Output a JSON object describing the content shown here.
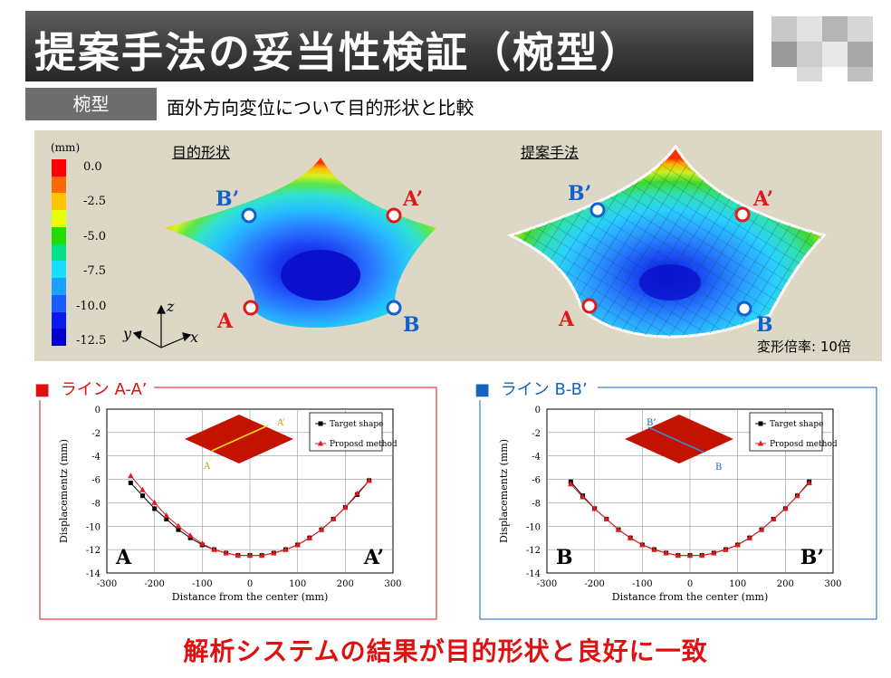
{
  "header": {
    "title": "提案手法の妥当性検証（椀型）"
  },
  "section": {
    "badge": "椀型",
    "subtitle": "面外方向変位について目的形状と比較"
  },
  "legend": {
    "unit": "(mm)",
    "ticks": [
      "0.0",
      "-2.5",
      "-5.0",
      "-7.5",
      "-10.0",
      "-12.5"
    ],
    "colors": [
      "#ff0000",
      "#ff6a00",
      "#ffc400",
      "#e8ff00",
      "#22dd00",
      "#00e08a",
      "#18e0ff",
      "#1aa0ff",
      "#1a5cff",
      "#0a1aee",
      "#0000cc"
    ]
  },
  "axes_triad": {
    "z": "z",
    "y": "y",
    "x": "x"
  },
  "panels": {
    "target_label": "目的形状",
    "proposed_label": "提案手法",
    "scale_note": "変形倍率: 10倍",
    "point_labels": {
      "b_prime": "B’",
      "a_prime": "A’",
      "a": "A",
      "b": "B"
    }
  },
  "colors": {
    "red_point": "#e31919",
    "blue_point": "#1060d0",
    "accent_red": "#e01010",
    "accent_blue": "#1565c0"
  },
  "chart_data": [
    {
      "type": "line",
      "title": "ライン A-A’",
      "title_marker": "■",
      "xlabel": "Distance from the center (mm)",
      "ylabel": "Displacementz (mm)",
      "xlim": [
        -300,
        300
      ],
      "ylim": [
        -14,
        0
      ],
      "xticks": [
        "-300",
        "-200",
        "-100",
        "0",
        "100",
        "200",
        "300"
      ],
      "yticks": [
        "0",
        "-2",
        "-4",
        "-6",
        "-8",
        "-10",
        "-12",
        "-14"
      ],
      "x": [
        -250,
        -225,
        -200,
        -175,
        -150,
        -125,
        -100,
        -75,
        -50,
        -25,
        0,
        25,
        50,
        75,
        100,
        125,
        150,
        175,
        200,
        225,
        250
      ],
      "series": [
        {
          "name": "Target shape",
          "marker": "square",
          "color": "#000000",
          "values": [
            -6.3,
            -7.4,
            -8.5,
            -9.4,
            -10.3,
            -11.0,
            -11.6,
            -12.0,
            -12.3,
            -12.5,
            -12.5,
            -12.5,
            -12.3,
            -12.0,
            -11.6,
            -11.0,
            -10.3,
            -9.4,
            -8.4,
            -7.3,
            -6.1
          ]
        },
        {
          "name": "Proposd method",
          "marker": "triangle",
          "color": "#e31919",
          "values": [
            -5.7,
            -6.9,
            -8.0,
            -9.1,
            -10.0,
            -10.8,
            -11.5,
            -12.0,
            -12.3,
            -12.5,
            -12.5,
            -12.5,
            -12.3,
            -12.0,
            -11.6,
            -11.0,
            -10.3,
            -9.4,
            -8.4,
            -7.2,
            -6.1
          ]
        }
      ],
      "corner_labels": [
        "A",
        "A’"
      ],
      "inset_labels": [
        "A’",
        "A"
      ],
      "legend_position": "top-right",
      "grid": true
    },
    {
      "type": "line",
      "title": "ライン B-B’",
      "title_marker": "■",
      "xlabel": "Distance from the center (mm)",
      "ylabel": "Displacementz (mm)",
      "xlim": [
        -300,
        300
      ],
      "ylim": [
        -14,
        0
      ],
      "xticks": [
        "-300",
        "-200",
        "-100",
        "0",
        "100",
        "200",
        "300"
      ],
      "yticks": [
        "0",
        "-2",
        "-4",
        "-6",
        "-8",
        "-10",
        "-12",
        "-14"
      ],
      "x": [
        -250,
        -225,
        -200,
        -175,
        -150,
        -125,
        -100,
        -75,
        -50,
        -25,
        0,
        25,
        50,
        75,
        100,
        125,
        150,
        175,
        200,
        225,
        250
      ],
      "series": [
        {
          "name": "Target shape",
          "marker": "square",
          "color": "#000000",
          "values": [
            -6.2,
            -7.4,
            -8.5,
            -9.4,
            -10.3,
            -11.0,
            -11.6,
            -12.0,
            -12.3,
            -12.5,
            -12.5,
            -12.5,
            -12.3,
            -12.0,
            -11.6,
            -11.0,
            -10.3,
            -9.4,
            -8.5,
            -7.4,
            -6.2
          ]
        },
        {
          "name": "Proposd method",
          "marker": "triangle",
          "color": "#e31919",
          "values": [
            -6.4,
            -7.5,
            -8.5,
            -9.4,
            -10.3,
            -11.0,
            -11.6,
            -12.0,
            -12.3,
            -12.5,
            -12.5,
            -12.5,
            -12.3,
            -12.0,
            -11.6,
            -11.0,
            -10.3,
            -9.4,
            -8.5,
            -7.4,
            -6.3
          ]
        }
      ],
      "corner_labels": [
        "B",
        "B’"
      ],
      "inset_labels": [
        "B’",
        "B"
      ],
      "legend_position": "top-right",
      "grid": true
    }
  ],
  "conclusion": "解析システムの結果が目的形状と良好に一致"
}
